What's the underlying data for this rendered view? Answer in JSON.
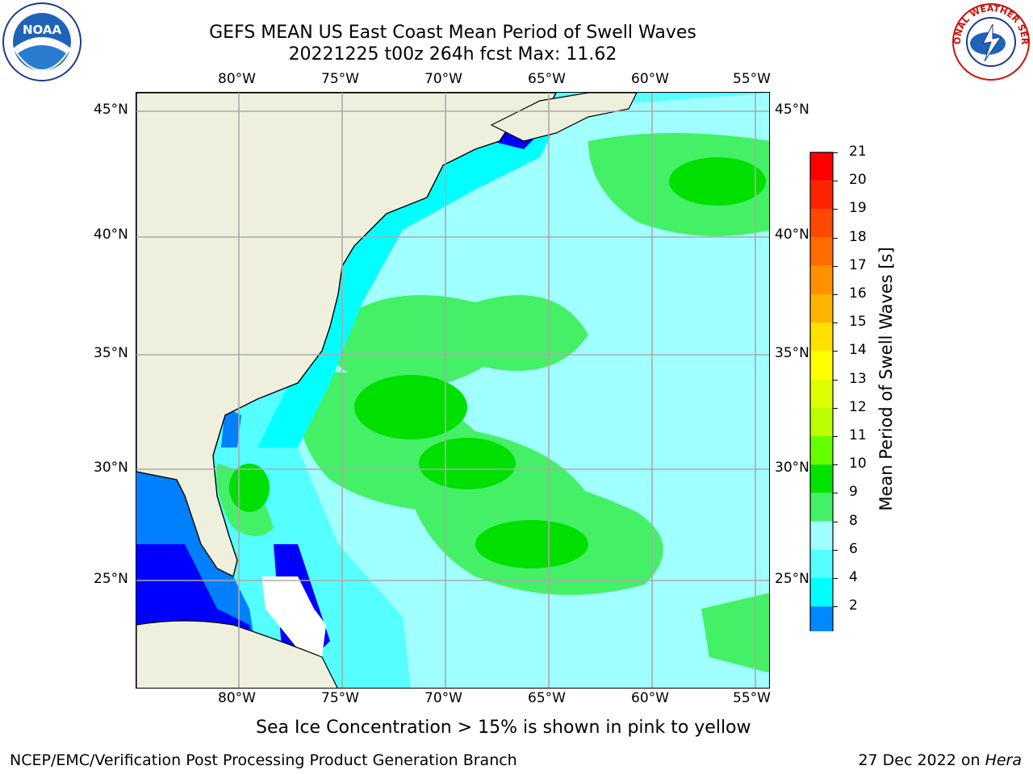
{
  "title": {
    "line1": "GEFS MEAN US East Coast Mean Period of Swell Waves",
    "line2": "20221225 t00z 264h fcst   Max: 11.62"
  },
  "logos": {
    "left": "NOAA",
    "right": "NATIONAL WEATHER SERVICE"
  },
  "axes": {
    "lon_labels": [
      "80°W",
      "75°W",
      "70°W",
      "65°W",
      "60°W",
      "55°W"
    ],
    "lat_labels": [
      "45°N",
      "40°N",
      "35°N",
      "30°N",
      "25°N"
    ]
  },
  "colorbar": {
    "label": "Mean Period of Swell Waves [s]",
    "ticks": [
      "21",
      "20",
      "19",
      "18",
      "17",
      "16",
      "15",
      "14",
      "13",
      "12",
      "11",
      "10",
      "9",
      "8",
      "6",
      "4",
      "2"
    ],
    "colors": [
      "#ff0000",
      "#ff2400",
      "#ff4800",
      "#ff6c00",
      "#ff9000",
      "#ffb400",
      "#ffe000",
      "#ffff00",
      "#dfff00",
      "#bbff00",
      "#66ff00",
      "#00e400",
      "#44f066",
      "#a0ffff",
      "#55ffff",
      "#00ffff",
      "#0088ff"
    ]
  },
  "colors": {
    "land": "#efefdd",
    "deep_blue": "#0000ff",
    "blue": "#0080ff",
    "cyan": "#00ffff",
    "light_cyan": "#a0ffff",
    "pale_cyan": "#55ffff",
    "green": "#44f066",
    "bright_green": "#00e000",
    "grid": "#aaaaaa"
  },
  "note": "Sea Ice Concentration > 15% is shown in pink to yellow",
  "footer": {
    "left": "NCEP/EMC/Verification Post Processing Product Generation Branch",
    "right_date": "27 Dec 2022 on ",
    "right_machine": "Hera"
  }
}
